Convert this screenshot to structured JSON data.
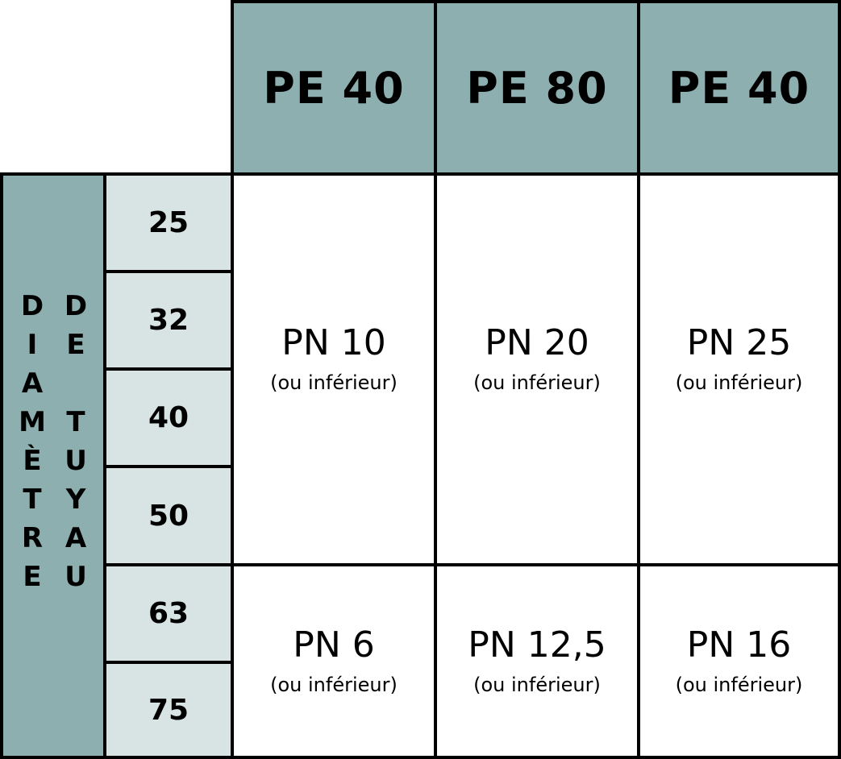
{
  "header": {
    "columns": [
      "PE 40",
      "PE 80",
      "PE 40"
    ]
  },
  "side_label": {
    "col1_letters": [
      "D",
      "I",
      "A",
      "M",
      "È",
      "T",
      "R",
      "E"
    ],
    "col2_letters": [
      "D",
      "E",
      "",
      "T",
      "U",
      "Y",
      "A",
      "U"
    ]
  },
  "diameters": [
    "25",
    "32",
    "40",
    "50",
    "63",
    "75"
  ],
  "groups": [
    {
      "cells": [
        {
          "pn": "PN 10",
          "note": "(ou inférieur)"
        },
        {
          "pn": "PN 20",
          "note": "(ou inférieur)"
        },
        {
          "pn": "PN 25",
          "note": "(ou inférieur)"
        }
      ]
    },
    {
      "cells": [
        {
          "pn": "PN 6",
          "note": "(ou inférieur)"
        },
        {
          "pn": "PN 12,5",
          "note": "(ou inférieur)"
        },
        {
          "pn": "PN 16",
          "note": "(ou inférieur)"
        }
      ]
    }
  ],
  "colors": {
    "header_bg": "#8dafaf",
    "diameter_bg": "#d8e4e3",
    "border": "#000000"
  }
}
